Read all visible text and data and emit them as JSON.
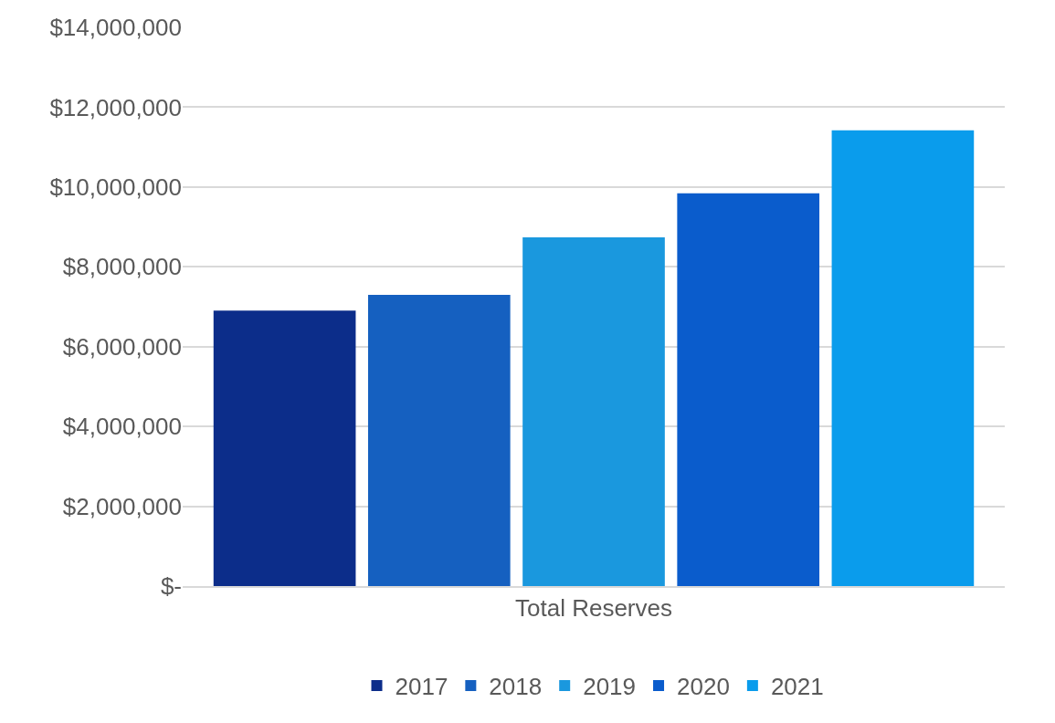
{
  "chart_data": {
    "type": "bar",
    "categories": [
      "Total Reserves"
    ],
    "series": [
      {
        "name": "2017",
        "color": "#0c2d8a",
        "values": [
          6900000
        ]
      },
      {
        "name": "2018",
        "color": "#1560c0",
        "values": [
          7300000
        ]
      },
      {
        "name": "2019",
        "color": "#1a98de",
        "values": [
          8740000
        ]
      },
      {
        "name": "2020",
        "color": "#0a5ccc",
        "values": [
          9840000
        ]
      },
      {
        "name": "2021",
        "color": "#0a9cec",
        "values": [
          11420000
        ]
      }
    ],
    "ylim": [
      0,
      14000000
    ],
    "yticks": [
      {
        "value": 0,
        "label": "$-"
      },
      {
        "value": 2000000,
        "label": "$2,000,000"
      },
      {
        "value": 4000000,
        "label": "$4,000,000"
      },
      {
        "value": 6000000,
        "label": "$6,000,000"
      },
      {
        "value": 8000000,
        "label": "$8,000,000"
      },
      {
        "value": 10000000,
        "label": "$10,000,000"
      },
      {
        "value": 12000000,
        "label": "$12,000,000"
      },
      {
        "value": 14000000,
        "label": "$14,000,000"
      }
    ],
    "grid": "y",
    "legend": "bottom"
  }
}
